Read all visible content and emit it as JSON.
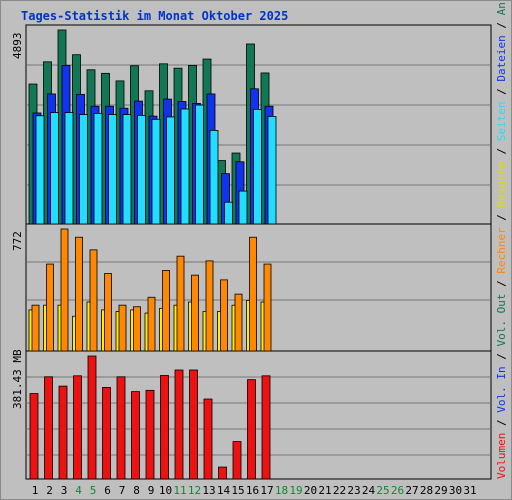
{
  "title": "Tages-Statistik im Monat Oktober 2025",
  "colors": {
    "anfragen": "#117755",
    "dateien": "#1133ee",
    "seiten": "#22ddff",
    "besuche": "#ffee00",
    "rechner": "#ff8800",
    "kbytes": "#ee1111",
    "weekend_label": "#118833",
    "label": "#000000",
    "grid": "#777777"
  },
  "chart_data": [
    {
      "type": "bar",
      "panel": "top",
      "ymax_label": "4893",
      "ymax": 4893,
      "x": [
        "1",
        "2",
        "3",
        "4",
        "5",
        "6",
        "7",
        "8",
        "9",
        "10",
        "11",
        "12",
        "13",
        "14",
        "15",
        "16",
        "17",
        "18",
        "19",
        "20",
        "21",
        "22",
        "23",
        "24",
        "25",
        "26",
        "27",
        "28",
        "29",
        "30",
        "31"
      ],
      "weekend": [
        "4",
        "5",
        "11",
        "12",
        "18",
        "19",
        "25",
        "26"
      ],
      "series": [
        {
          "name": "Anfragen",
          "color": "#117755",
          "values": [
            3530,
            4090,
            4893,
            4270,
            3890,
            3800,
            3610,
            3990,
            3360,
            4040,
            3930,
            4000,
            4160,
            1600,
            1790,
            4540,
            3810,
            0,
            0,
            0,
            0,
            0,
            0,
            0,
            0,
            0,
            0,
            0,
            0,
            0,
            0
          ]
        },
        {
          "name": "Dateien",
          "color": "#1133ee",
          "values": [
            2800,
            3280,
            4000,
            3270,
            2970,
            2970,
            2920,
            3100,
            2720,
            3150,
            3090,
            3040,
            3280,
            1270,
            1570,
            3410,
            2970,
            0,
            0,
            0,
            0,
            0,
            0,
            0,
            0,
            0,
            0,
            0,
            0,
            0,
            0
          ]
        },
        {
          "name": "Seiten",
          "color": "#22ddff",
          "values": [
            2730,
            2810,
            2810,
            2760,
            2790,
            2760,
            2760,
            2740,
            2640,
            2700,
            2900,
            3000,
            2360,
            550,
            830,
            2890,
            2710,
            0,
            0,
            0,
            0,
            0,
            0,
            0,
            0,
            0,
            0,
            0,
            0,
            0,
            0
          ]
        }
      ]
    },
    {
      "type": "bar",
      "panel": "middle",
      "ymax_label": "772",
      "ymax": 772,
      "x": [
        "1",
        "2",
        "3",
        "4",
        "5",
        "6",
        "7",
        "8",
        "9",
        "10",
        "11",
        "12",
        "13",
        "14",
        "15",
        "16",
        "17",
        "18",
        "19",
        "20",
        "21",
        "22",
        "23",
        "24",
        "25",
        "26",
        "27",
        "28",
        "29",
        "30",
        "31"
      ],
      "series": [
        {
          "name": "Besuche",
          "color": "#ffee00",
          "values": [
            260,
            290,
            290,
            220,
            310,
            260,
            250,
            260,
            240,
            270,
            290,
            310,
            250,
            250,
            290,
            320,
            310,
            0,
            0,
            0,
            0,
            0,
            0,
            0,
            0,
            0,
            0,
            0,
            0,
            0,
            0
          ]
        },
        {
          "name": "Rechner",
          "color": "#ff8800",
          "values": [
            290,
            550,
            772,
            720,
            640,
            490,
            290,
            280,
            340,
            510,
            600,
            480,
            570,
            450,
            360,
            720,
            550,
            0,
            0,
            0,
            0,
            0,
            0,
            0,
            0,
            0,
            0,
            0,
            0,
            0,
            0
          ]
        }
      ]
    },
    {
      "type": "bar",
      "panel": "bottom",
      "ymax_label": "381.43 MB",
      "ymax": 381.43,
      "x": [
        "1",
        "2",
        "3",
        "4",
        "5",
        "6",
        "7",
        "8",
        "9",
        "10",
        "11",
        "12",
        "13",
        "14",
        "15",
        "16",
        "17",
        "18",
        "19",
        "20",
        "21",
        "22",
        "23",
        "24",
        "25",
        "26",
        "27",
        "28",
        "29",
        "30",
        "31"
      ],
      "series": [
        {
          "name": "Volumen",
          "color": "#ee1111",
          "values": [
            265,
            317,
            288,
            320,
            381.43,
            284,
            317,
            271,
            275,
            321,
            338,
            338,
            248,
            37,
            116,
            308,
            320,
            0,
            0,
            0,
            0,
            0,
            0,
            0,
            0,
            0,
            0,
            0,
            0,
            0,
            0
          ]
        }
      ]
    }
  ],
  "side_legend": [
    {
      "text": "Volumen",
      "color": "#ee1111"
    },
    {
      "text": " / ",
      "color": "#000000"
    },
    {
      "text": "Vol. In",
      "color": "#1133ee"
    },
    {
      "text": " / ",
      "color": "#000000"
    },
    {
      "text": "Vol. Out",
      "color": "#117755"
    },
    {
      "text": " / ",
      "color": "#000000"
    },
    {
      "text": "Rechner",
      "color": "#ff8800"
    },
    {
      "text": " / ",
      "color": "#000000"
    },
    {
      "text": "Besuche",
      "color": "#dddd00"
    },
    {
      "text": " / ",
      "color": "#000000"
    },
    {
      "text": "Seiten",
      "color": "#22ddff"
    },
    {
      "text": " / ",
      "color": "#000000"
    },
    {
      "text": "Dateien",
      "color": "#1133ee"
    },
    {
      "text": " / ",
      "color": "#000000"
    },
    {
      "text": "Anfragen",
      "color": "#117755"
    }
  ]
}
